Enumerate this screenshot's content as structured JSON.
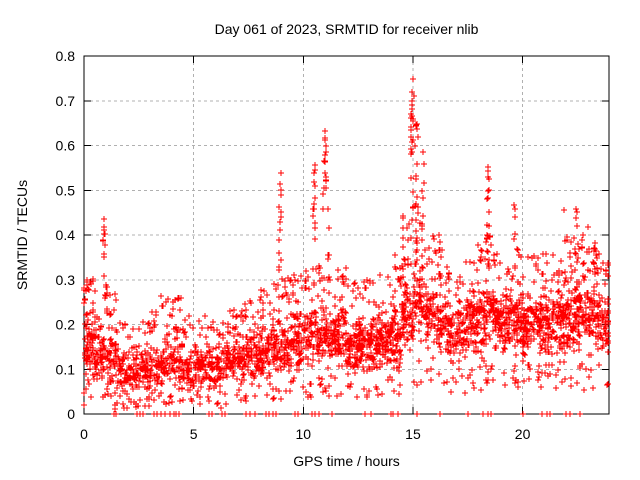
{
  "chart_data": {
    "type": "scatter",
    "title": "Day 061 of 2023, SRMTID for receiver nlib",
    "xlabel": "GPS time / hours",
    "ylabel": "SRMTID / TECUs",
    "xlim": [
      0,
      23.94
    ],
    "ylim": [
      0,
      0.8
    ],
    "xticks": [
      {
        "value": 0,
        "label": "0"
      },
      {
        "value": 5,
        "label": "5"
      },
      {
        "value": 10,
        "label": "10"
      },
      {
        "value": 15,
        "label": "15"
      },
      {
        "value": 20,
        "label": "20"
      }
    ],
    "yticks": [
      {
        "value": 0.0,
        "label": "0"
      },
      {
        "value": 0.1,
        "label": "0.1"
      },
      {
        "value": 0.2,
        "label": "0.2"
      },
      {
        "value": 0.3,
        "label": "0.3"
      },
      {
        "value": 0.4,
        "label": "0.4"
      },
      {
        "value": 0.5,
        "label": "0.5"
      },
      {
        "value": 0.6,
        "label": "0.6"
      },
      {
        "value": 0.7,
        "label": "0.7"
      },
      {
        "value": 0.8,
        "label": "0.8"
      }
    ],
    "grid": {
      "show": true,
      "color": "#b0b0b0",
      "dash": [
        3,
        3
      ]
    },
    "axis_color": "#000000",
    "marker": {
      "shape": "plus",
      "color": "#ff0000",
      "size": 7
    },
    "seed": 7,
    "band_width_hours": 0.5,
    "bands": [
      [
        0.0,
        72,
        0.05,
        0.24,
        0.31
      ],
      [
        0.5,
        62,
        0.05,
        0.2,
        0.28
      ],
      [
        1.0,
        62,
        0.05,
        0.21,
        0.3
      ],
      [
        1.5,
        55,
        0.03,
        0.16,
        0.22
      ],
      [
        2.0,
        55,
        0.04,
        0.16,
        0.22
      ],
      [
        2.5,
        58,
        0.04,
        0.17,
        0.23
      ],
      [
        3.0,
        56,
        0.05,
        0.17,
        0.23
      ],
      [
        3.5,
        60,
        0.05,
        0.19,
        0.27
      ],
      [
        4.0,
        56,
        0.04,
        0.18,
        0.26
      ],
      [
        4.5,
        52,
        0.04,
        0.16,
        0.22
      ],
      [
        5.0,
        55,
        0.05,
        0.16,
        0.22
      ],
      [
        5.5,
        56,
        0.04,
        0.17,
        0.23
      ],
      [
        6.0,
        56,
        0.03,
        0.17,
        0.22
      ],
      [
        6.5,
        56,
        0.06,
        0.18,
        0.24
      ],
      [
        7.0,
        60,
        0.06,
        0.19,
        0.25
      ],
      [
        7.5,
        62,
        0.07,
        0.2,
        0.26
      ],
      [
        8.0,
        64,
        0.07,
        0.21,
        0.28
      ],
      [
        8.5,
        64,
        0.08,
        0.22,
        0.3
      ],
      [
        9.0,
        64,
        0.08,
        0.23,
        0.31
      ],
      [
        9.5,
        64,
        0.09,
        0.24,
        0.32
      ],
      [
        10.0,
        64,
        0.09,
        0.25,
        0.33
      ],
      [
        10.5,
        60,
        0.1,
        0.26,
        0.35
      ],
      [
        11.0,
        64,
        0.1,
        0.26,
        0.36
      ],
      [
        11.5,
        68,
        0.1,
        0.25,
        0.33
      ],
      [
        12.0,
        70,
        0.08,
        0.22,
        0.3
      ],
      [
        12.5,
        70,
        0.08,
        0.22,
        0.3
      ],
      [
        13.0,
        70,
        0.08,
        0.23,
        0.31
      ],
      [
        13.5,
        70,
        0.09,
        0.24,
        0.32
      ],
      [
        14.0,
        70,
        0.08,
        0.26,
        0.36
      ],
      [
        14.5,
        70,
        0.12,
        0.32,
        0.45
      ],
      [
        15.0,
        64,
        0.15,
        0.35,
        0.48
      ],
      [
        15.5,
        60,
        0.14,
        0.32,
        0.42
      ],
      [
        16.0,
        56,
        0.12,
        0.28,
        0.37
      ],
      [
        16.5,
        60,
        0.1,
        0.26,
        0.33
      ],
      [
        17.0,
        64,
        0.11,
        0.27,
        0.34
      ],
      [
        17.5,
        70,
        0.12,
        0.3,
        0.38
      ],
      [
        18.0,
        70,
        0.13,
        0.32,
        0.42
      ],
      [
        18.5,
        70,
        0.13,
        0.31,
        0.4
      ],
      [
        19.0,
        70,
        0.12,
        0.29,
        0.37
      ],
      [
        19.5,
        70,
        0.12,
        0.29,
        0.4
      ],
      [
        20.0,
        70,
        0.12,
        0.28,
        0.36
      ],
      [
        20.5,
        70,
        0.12,
        0.28,
        0.36
      ],
      [
        21.0,
        70,
        0.12,
        0.29,
        0.37
      ],
      [
        21.5,
        70,
        0.12,
        0.29,
        0.38
      ],
      [
        22.0,
        72,
        0.13,
        0.31,
        0.4
      ],
      [
        22.5,
        74,
        0.13,
        0.32,
        0.42
      ],
      [
        23.0,
        74,
        0.14,
        0.3,
        0.4
      ],
      [
        23.5,
        60,
        0.12,
        0.28,
        0.38
      ]
    ],
    "spikes": [
      [
        0.07,
        12,
        0.08,
        0.3
      ],
      [
        0.9,
        9,
        0.26,
        0.43
      ],
      [
        1.05,
        5,
        0.2,
        0.31
      ],
      [
        8.95,
        12,
        0.26,
        0.53
      ],
      [
        10.5,
        12,
        0.27,
        0.55
      ],
      [
        10.97,
        14,
        0.3,
        0.64
      ],
      [
        11.15,
        7,
        0.25,
        0.46
      ],
      [
        14.55,
        9,
        0.28,
        0.46
      ],
      [
        14.95,
        22,
        0.32,
        0.74
      ],
      [
        15.15,
        14,
        0.3,
        0.65
      ],
      [
        15.45,
        9,
        0.3,
        0.58
      ],
      [
        16.22,
        5,
        0.26,
        0.4
      ],
      [
        18.42,
        16,
        0.3,
        0.55
      ],
      [
        19.62,
        5,
        0.3,
        0.46
      ],
      [
        21.92,
        4,
        0.28,
        0.45
      ],
      [
        22.45,
        9,
        0.28,
        0.46
      ],
      [
        23.3,
        5,
        0.25,
        0.4
      ]
    ],
    "zero_points_x": [
      1.35,
      1.45,
      2.4,
      2.55,
      2.7,
      3.2,
      3.35,
      3.5,
      3.7,
      3.9,
      4.1,
      4.2,
      4.35,
      5.7,
      5.85,
      6.3,
      6.45,
      7.4,
      7.55,
      7.8,
      8.3,
      8.45,
      8.6,
      8.75,
      9.6,
      9.75,
      10.4,
      10.55,
      10.7,
      11.3,
      12.8,
      13.1,
      14.0,
      14.1,
      14.3,
      15.2,
      16.25,
      17.5,
      18.2,
      18.4,
      18.55,
      20.0,
      20.9,
      21.1,
      21.25,
      22.0,
      22.15,
      22.6
    ],
    "peak_points": [
      [
        14.99,
        0.749
      ],
      [
        15.03,
        0.71
      ],
      [
        14.96,
        0.69
      ],
      [
        15.0,
        0.655
      ],
      [
        10.97,
        0.632
      ],
      [
        11.0,
        0.612
      ],
      [
        11.02,
        0.585
      ],
      [
        15.18,
        0.648
      ],
      [
        15.21,
        0.62
      ],
      [
        8.97,
        0.538
      ],
      [
        8.94,
        0.515
      ],
      [
        9.0,
        0.49
      ],
      [
        10.52,
        0.557
      ],
      [
        10.49,
        0.538
      ],
      [
        10.55,
        0.51
      ],
      [
        18.42,
        0.552
      ],
      [
        18.45,
        0.5
      ],
      [
        18.39,
        0.48
      ],
      [
        0.9,
        0.435
      ],
      [
        0.92,
        0.418
      ],
      [
        15.45,
        0.585
      ],
      [
        15.5,
        0.558
      ],
      [
        22.45,
        0.458
      ],
      [
        21.9,
        0.455
      ],
      [
        19.62,
        0.468
      ],
      [
        16.2,
        0.4
      ],
      [
        16.25,
        0.385
      ],
      [
        11.05,
        0.53
      ],
      [
        14.92,
        0.58
      ],
      [
        15.1,
        0.6
      ],
      [
        1.4,
        0.02
      ],
      [
        1.42,
        0.012
      ]
    ]
  }
}
